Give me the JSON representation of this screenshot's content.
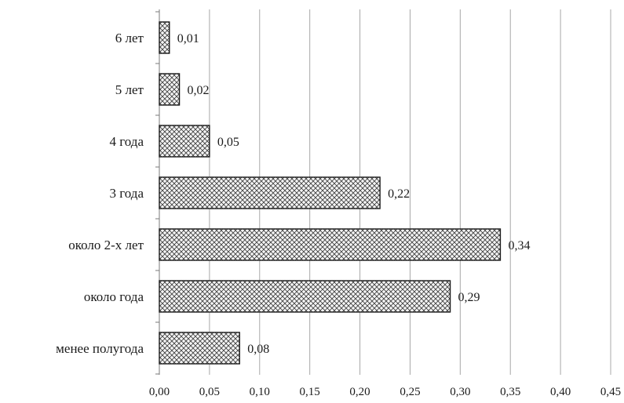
{
  "chart_data": {
    "type": "bar",
    "orientation": "horizontal",
    "categories": [
      "6 лет",
      "5 лет",
      "4 года",
      "3 года",
      "около 2-х лет",
      "около года",
      "менее полугода"
    ],
    "values": [
      0.01,
      0.02,
      0.05,
      0.22,
      0.34,
      0.29,
      0.08
    ],
    "value_labels": [
      "0,01",
      "0,02",
      "0,05",
      "0,22",
      "0,34",
      "0,29",
      "0,08"
    ],
    "x_ticks": [
      "0,00",
      "0,05",
      "0,10",
      "0,15",
      "0,20",
      "0,25",
      "0,30",
      "0,35",
      "0,40",
      "0,45"
    ],
    "xlim": [
      0,
      0.45
    ],
    "title": "",
    "xlabel": "",
    "ylabel": "",
    "grid": "vertical",
    "legend": "none",
    "bar_fill": "crosshatch",
    "colors": {
      "bar_stroke": "#1a1a1a",
      "grid": "#a8a8a8"
    }
  }
}
